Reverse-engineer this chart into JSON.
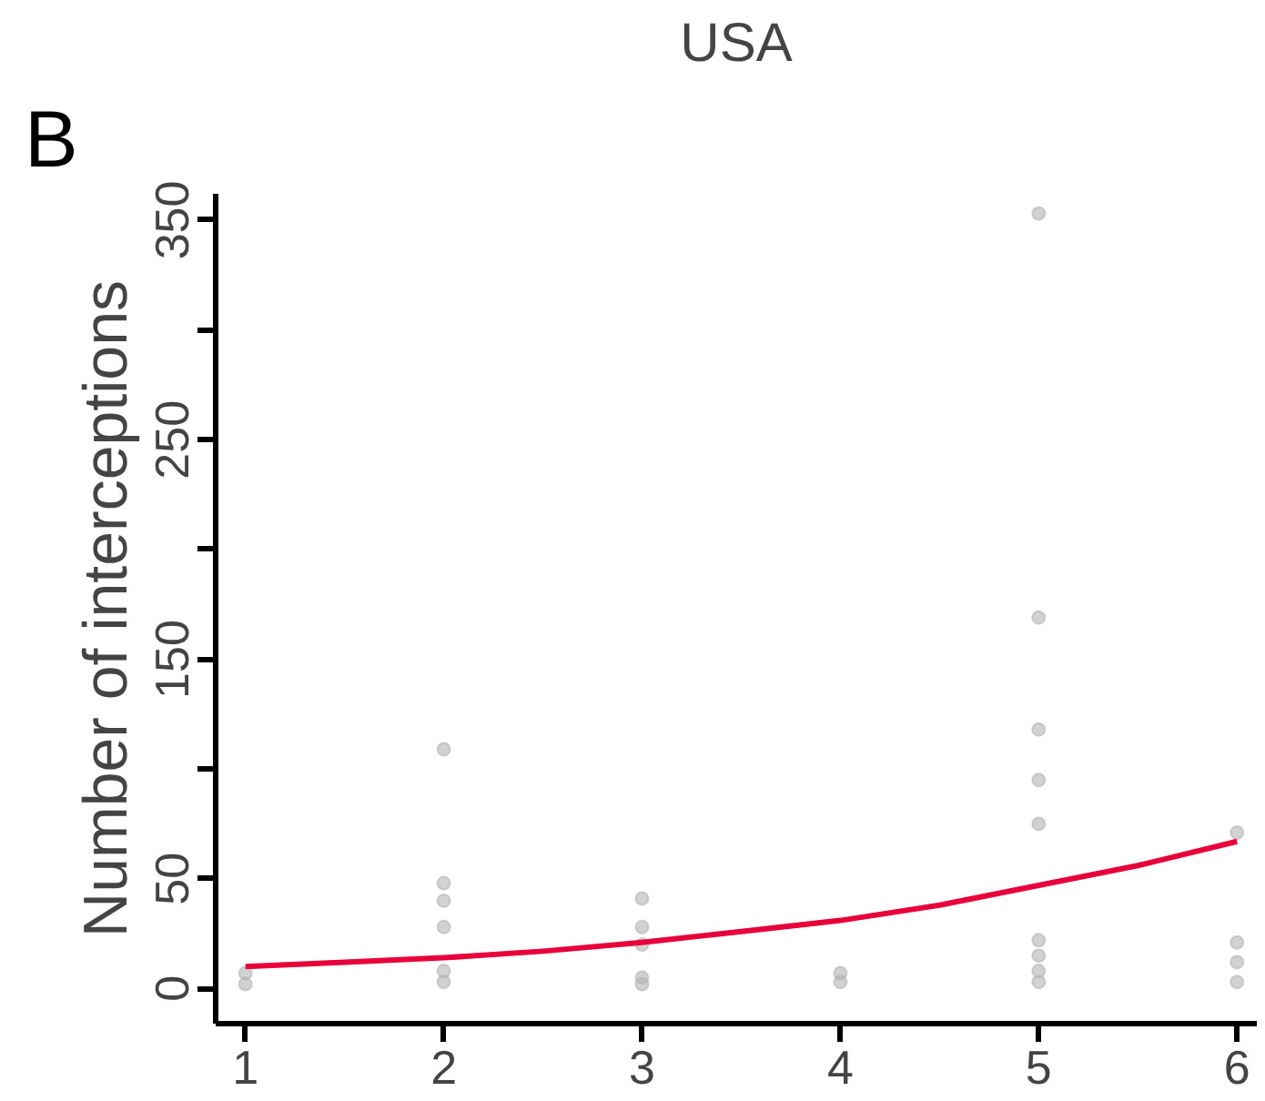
{
  "chart_data": {
    "type": "scatter",
    "title": "USA",
    "ylabel": "Number of interceptions",
    "annotations": [
      "B"
    ],
    "xlim": [
      0.85,
      6.1
    ],
    "ylim": [
      -16,
      362
    ],
    "xticks": [
      1,
      2,
      3,
      4,
      5,
      6
    ],
    "yticks": [
      0,
      50,
      {
        "value": 100,
        "label": null
      },
      150,
      {
        "value": 200,
        "label": null
      },
      250,
      {
        "value": 300,
        "label": null
      },
      350
    ],
    "grid": false,
    "marker": "circle",
    "series": [
      {
        "color": "#b4b4b4",
        "x": [
          1,
          1,
          2,
          2,
          2,
          2,
          2,
          2,
          3,
          3,
          3,
          3,
          3,
          4,
          4,
          5,
          5,
          5,
          5,
          5,
          5,
          5,
          5,
          5,
          6,
          6,
          6,
          6
        ],
        "values": [
          7,
          2,
          109,
          48,
          40,
          28,
          8,
          3,
          41,
          28,
          20,
          5,
          2,
          7,
          3,
          353,
          169,
          118,
          95,
          75,
          22,
          15,
          8,
          3,
          71,
          21,
          12,
          3
        ]
      },
      {
        "type": "line",
        "color": "#e8003a",
        "marker": "none",
        "x": [
          1,
          1.5,
          2,
          2.5,
          3,
          3.5,
          4,
          4.5,
          5,
          5.5,
          6
        ],
        "values": [
          10,
          12,
          14,
          17,
          21,
          26,
          31,
          38,
          47,
          56,
          67
        ]
      }
    ]
  }
}
